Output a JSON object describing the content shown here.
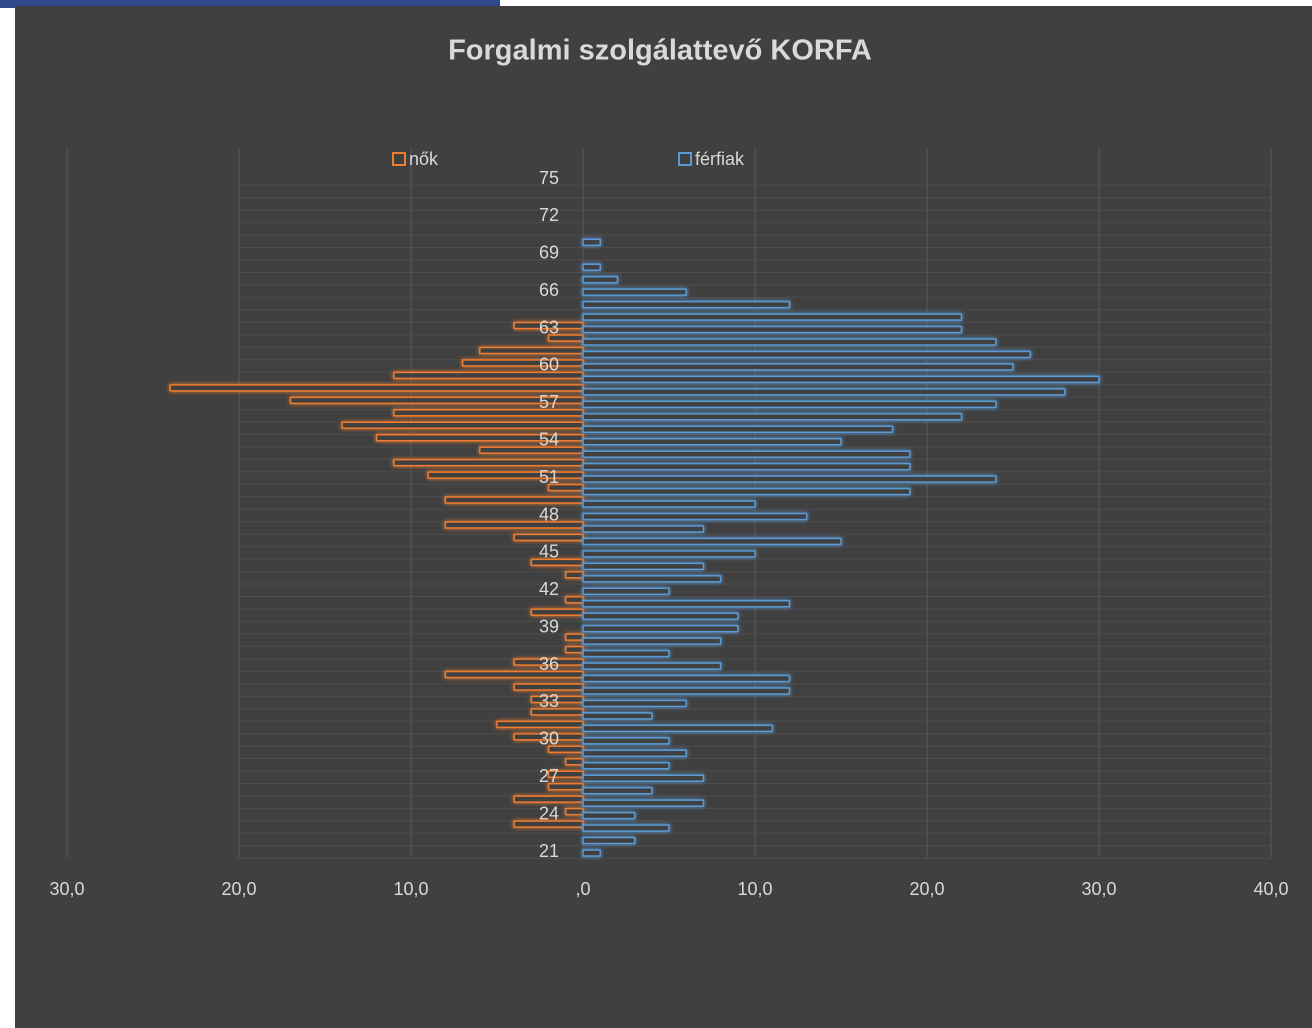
{
  "chart_data": {
    "type": "bar",
    "orientation": "horizontal",
    "title": "Forgalmi szolgálattevő KORFA",
    "categories": [
      "21",
      null,
      null,
      "24",
      null,
      null,
      "27",
      null,
      null,
      "30",
      null,
      null,
      "33",
      null,
      null,
      "36",
      null,
      null,
      "39",
      null,
      null,
      "42",
      null,
      null,
      "45",
      null,
      null,
      "48",
      null,
      null,
      "51",
      null,
      null,
      "54",
      null,
      null,
      "57",
      null,
      null,
      "60",
      null,
      null,
      "63",
      null,
      null,
      "66",
      null,
      null,
      "69",
      null,
      null,
      "72",
      null,
      null,
      "75"
    ],
    "series": [
      {
        "name": "nők",
        "color": "#ed7d31",
        "values": [
          0,
          0,
          -4,
          -1,
          -4,
          -2,
          -2,
          -1,
          -2,
          -4,
          -5,
          -3,
          -3,
          -4,
          -8,
          -4,
          -1,
          -1,
          0,
          -3,
          -1,
          0,
          -1,
          -3,
          0,
          -4,
          -8,
          0,
          -8,
          -2,
          -9,
          -11,
          -6,
          -12,
          -14,
          -11,
          -17,
          -24,
          -11,
          -7,
          -6,
          -2,
          -4,
          0,
          0,
          0,
          0,
          0,
          0,
          0,
          0,
          0,
          0,
          0,
          0
        ]
      },
      {
        "name": "férfiak",
        "color": "#5b9bd5",
        "values": [
          1,
          3,
          5,
          3,
          7,
          4,
          7,
          5,
          6,
          5,
          11,
          4,
          6,
          12,
          12,
          8,
          5,
          8,
          9,
          9,
          12,
          5,
          8,
          7,
          10,
          15,
          7,
          13,
          10,
          19,
          24,
          19,
          19,
          15,
          18,
          22,
          24,
          28,
          30,
          25,
          26,
          24,
          22,
          22,
          12,
          6,
          2,
          1,
          0,
          1,
          0,
          0,
          0,
          0,
          0
        ]
      }
    ],
    "xlim": [
      -30,
      40
    ],
    "xticks": [
      {
        "value": -30,
        "label": "30,0"
      },
      {
        "value": -20,
        "label": "20,0"
      },
      {
        "value": -10,
        "label": "10,0"
      },
      {
        "value": 0,
        "label": ",0"
      },
      {
        "value": 10,
        "label": "10,0"
      },
      {
        "value": 20,
        "label": "20,0"
      },
      {
        "value": 30,
        "label": "30,0"
      },
      {
        "value": 40,
        "label": "40,0"
      }
    ],
    "grid": true,
    "legend": "top"
  }
}
